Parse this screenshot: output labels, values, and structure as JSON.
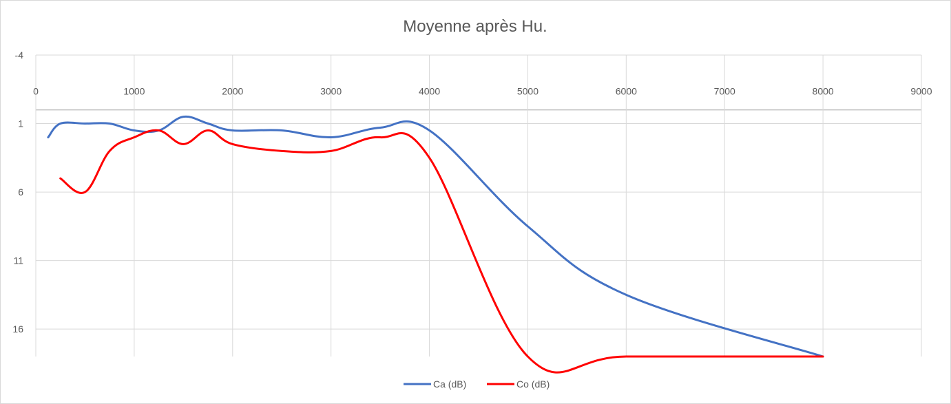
{
  "chart_data": {
    "type": "line",
    "title": "Moyenne après Hu.",
    "xlabel": "",
    "ylabel": "",
    "xlim": [
      0,
      9000
    ],
    "ylim": [
      -4,
      18
    ],
    "y_reversed": true,
    "x_ticks": [
      "0",
      "1000",
      "2000",
      "3000",
      "4000",
      "5000",
      "6000",
      "7000",
      "8000",
      "9000"
    ],
    "y_ticks": [
      "-4",
      "1",
      "6",
      "11",
      "16"
    ],
    "x_tick_values": [
      0,
      1000,
      2000,
      3000,
      4000,
      5000,
      6000,
      7000,
      8000,
      9000
    ],
    "y_tick_values": [
      -4,
      1,
      6,
      11,
      16
    ],
    "grid": true,
    "legend_position": "bottom",
    "colors": {
      "Ca (dB)": "#4472c4",
      "Co (dB)": "#ff0000",
      "grid": "#d9d9d9"
    },
    "series": [
      {
        "name": "Ca (dB)",
        "x": [
          125,
          250,
          500,
          750,
          1000,
          1250,
          1500,
          1750,
          2000,
          2500,
          3000,
          3500,
          4000,
          5000,
          6000,
          8000
        ],
        "y": [
          2,
          1,
          1,
          1,
          1.5,
          1.5,
          0.5,
          1,
          1.5,
          1.5,
          2,
          1.3,
          1.5,
          8.5,
          13.5,
          18
        ]
      },
      {
        "name": "Co (dB)",
        "x": [
          250,
          500,
          750,
          1000,
          1250,
          1500,
          1750,
          2000,
          2500,
          3000,
          3500,
          4000,
          5000,
          6000,
          8000
        ],
        "y": [
          5,
          6,
          3,
          2,
          1.5,
          2.5,
          1.5,
          2.5,
          3,
          3,
          2,
          3.5,
          18,
          18,
          18
        ]
      }
    ]
  }
}
